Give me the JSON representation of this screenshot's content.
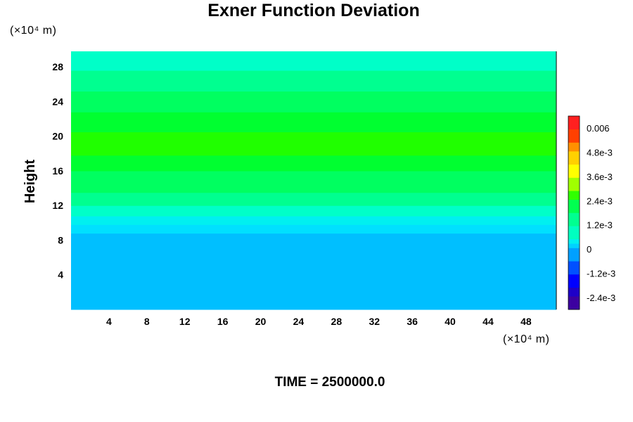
{
  "chart_data": {
    "type": "heatmap",
    "title": "Exner Function Deviation",
    "ylabel": "Height",
    "xlabel": "",
    "x_unit": "(×10⁴ m)",
    "y_unit": "(×10⁴ m)",
    "footer": "TIME = 2500000.0",
    "xlim": [
      0,
      51.2
    ],
    "ylim": [
      0,
      29.8
    ],
    "x_ticks": [
      4,
      8,
      12,
      16,
      20,
      24,
      28,
      32,
      36,
      40,
      44,
      48
    ],
    "y_ticks": [
      4,
      8,
      12,
      16,
      20,
      24,
      28
    ],
    "colorbar": {
      "range": [
        -0.003,
        0.0066
      ],
      "ticks": [
        {
          "value": 0.006,
          "label": "0.006"
        },
        {
          "value": 0.0048,
          "label": "4.8e-3"
        },
        {
          "value": 0.0036,
          "label": "3.6e-3"
        },
        {
          "value": 0.0024,
          "label": "2.4e-3"
        },
        {
          "value": 0.0012,
          "label": "1.2e-3"
        },
        {
          "value": 0,
          "label": "0"
        },
        {
          "value": -0.0012,
          "label": "-1.2e-3"
        },
        {
          "value": -0.0024,
          "label": "-2.4e-3"
        }
      ],
      "levels": [
        {
          "value": -0.003,
          "color": "#3c00a0"
        },
        {
          "value": -0.0024,
          "color": "#1e00c8"
        },
        {
          "value": -0.0018,
          "color": "#0000ff"
        },
        {
          "value": -0.0012,
          "color": "#0050ff"
        },
        {
          "value": -0.0006,
          "color": "#00a0ff"
        },
        {
          "value": 0.0,
          "color": "#00d2ff"
        },
        {
          "value": 0.0003,
          "color": "#00f0f0"
        },
        {
          "value": 0.0006,
          "color": "#00ffc0"
        },
        {
          "value": 0.0012,
          "color": "#00ff90"
        },
        {
          "value": 0.0018,
          "color": "#00ff50"
        },
        {
          "value": 0.0024,
          "color": "#30ff00"
        },
        {
          "value": 0.003,
          "color": "#a0ff00"
        },
        {
          "value": 0.0036,
          "color": "#ffff00"
        },
        {
          "value": 0.0042,
          "color": "#ffd000"
        },
        {
          "value": 0.0048,
          "color": "#ff9000"
        },
        {
          "value": 0.0054,
          "color": "#ff4000"
        },
        {
          "value": 0.006,
          "color": "#ff2020"
        },
        {
          "value": 0.0066,
          "color": "#f07070"
        }
      ]
    },
    "bands": [
      {
        "y0": 0.0,
        "y1": 8.8,
        "value": -0.0006,
        "color": "#00bfff"
      },
      {
        "y0": 8.8,
        "y1": 9.8,
        "value": 0.0,
        "color": "#00e0ff"
      },
      {
        "y0": 9.8,
        "y1": 10.8,
        "value": 0.0003,
        "color": "#00f0f0"
      },
      {
        "y0": 10.8,
        "y1": 12.0,
        "value": 0.0006,
        "color": "#00ffc8"
      },
      {
        "y0": 12.0,
        "y1": 13.5,
        "value": 0.0009,
        "color": "#00ff90"
      },
      {
        "y0": 13.5,
        "y1": 16.0,
        "value": 0.0012,
        "color": "#00ff60"
      },
      {
        "y0": 16.0,
        "y1": 17.8,
        "value": 0.0015,
        "color": "#00ff30"
      },
      {
        "y0": 17.8,
        "y1": 20.5,
        "value": 0.0018,
        "color": "#20ff00"
      },
      {
        "y0": 20.5,
        "y1": 22.8,
        "value": 0.0016,
        "color": "#00ff30"
      },
      {
        "y0": 22.8,
        "y1": 25.2,
        "value": 0.0013,
        "color": "#00ff60"
      },
      {
        "y0": 25.2,
        "y1": 27.6,
        "value": 0.001,
        "color": "#00ff90"
      },
      {
        "y0": 27.6,
        "y1": 29.8,
        "value": 0.0006,
        "color": "#00ffc8"
      }
    ]
  }
}
